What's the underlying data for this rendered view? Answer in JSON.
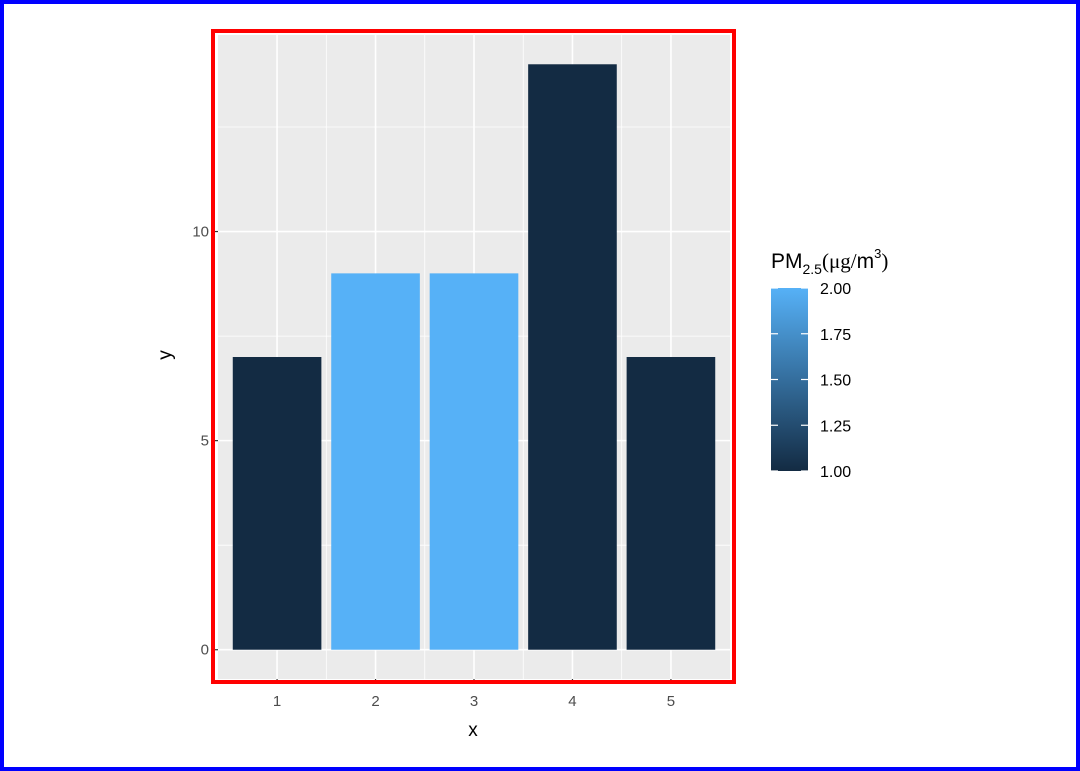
{
  "chart_data": {
    "type": "bar",
    "categories": [
      "1",
      "2",
      "3",
      "4",
      "5"
    ],
    "values": [
      7,
      9,
      9,
      14,
      7
    ],
    "fill_values": [
      1,
      2,
      2,
      1,
      1
    ],
    "xlabel": "x",
    "ylabel": "y",
    "ylim": [
      -0.7,
      14.7
    ],
    "y_ticks": [
      0,
      5,
      10
    ],
    "y_tick_labels": [
      "0",
      "5",
      "10"
    ],
    "grid": true,
    "legend": {
      "placement": "right",
      "title_main": "PM",
      "title_sub": "2.5",
      "title_paren_open": "(",
      "title_unit": "μg",
      "title_slash": "/",
      "title_unit2": "m",
      "title_sup": "3",
      "title_paren_close": ")",
      "range": [
        1.0,
        2.0
      ],
      "breaks": [
        2.0,
        1.75,
        1.5,
        1.25,
        1.0
      ],
      "break_labels": [
        "2.00",
        "1.75",
        "1.50",
        "1.25",
        "1.00"
      ],
      "color_low": "#132B43",
      "color_high": "#56B1F7"
    }
  },
  "colors": {
    "panel_background": "#EBEBEB",
    "grid_major": "#FFFFFF",
    "panel_highlight": "#FF0000",
    "outer_frame": "#0000FF"
  }
}
